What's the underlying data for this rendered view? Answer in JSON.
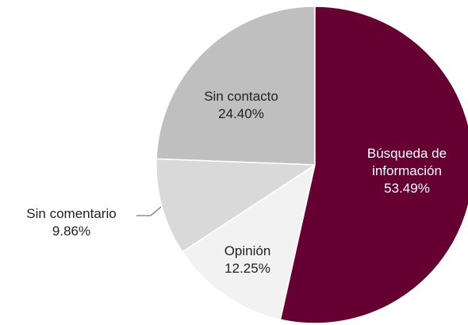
{
  "chart_data": {
    "type": "pie",
    "categories": [
      "Búsqueda de información",
      "Opinión",
      "Sin comentario",
      "Sin contacto"
    ],
    "values": [
      53.49,
      12.25,
      9.86,
      24.4
    ],
    "value_labels": [
      "53.49%",
      "12.25%",
      "9.86%",
      "24.40%"
    ],
    "colors": [
      "#660033",
      "#f2f2f2",
      "#d9d9d9",
      "#bfbfbf"
    ]
  }
}
